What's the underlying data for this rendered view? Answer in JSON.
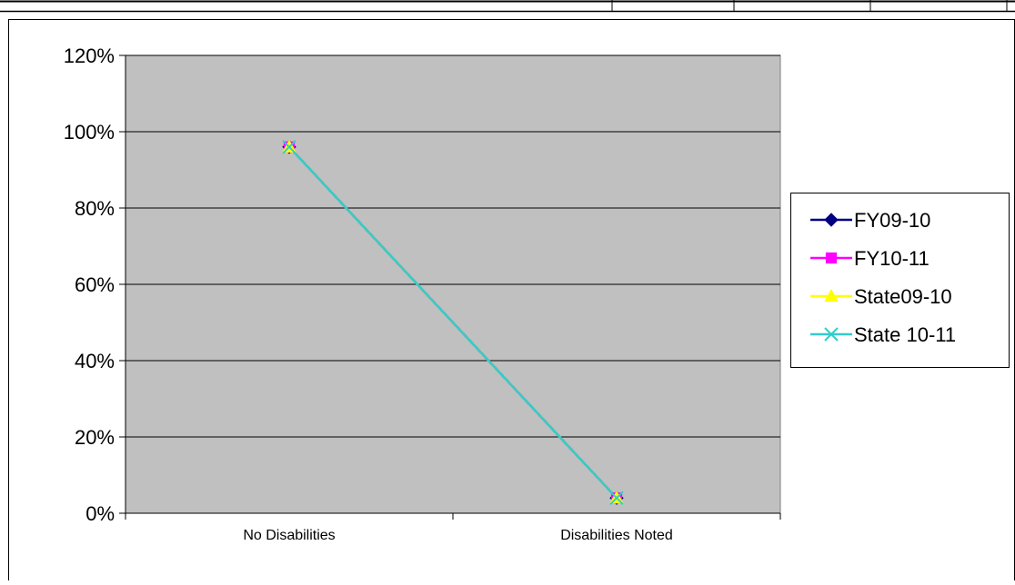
{
  "chart_data": {
    "type": "line",
    "categories": [
      "No Disabilities",
      "Disabilities Noted"
    ],
    "ylim": [
      0,
      1.2
    ],
    "y_ticks": [
      0,
      0.2,
      0.4,
      0.6,
      0.8,
      1.0,
      1.2
    ],
    "y_tick_labels": [
      "0%",
      "20%",
      "40%",
      "60%",
      "80%",
      "100%",
      "120%"
    ],
    "grid": true,
    "legend_position": "right",
    "plot_background": "#C0C0C0",
    "series": [
      {
        "name": "FY09-10",
        "values": [
          0.96,
          0.04
        ],
        "color": "#000080",
        "marker": "diamond"
      },
      {
        "name": "FY10-11",
        "values": [
          0.96,
          0.04
        ],
        "color": "#FF00FF",
        "marker": "square"
      },
      {
        "name": "State09-10",
        "values": [
          0.96,
          0.04
        ],
        "color": "#FFFF00",
        "marker": "triangle"
      },
      {
        "name": "State 10-11",
        "values": [
          0.96,
          0.04
        ],
        "color": "#33CCCC",
        "marker": "x"
      }
    ]
  }
}
